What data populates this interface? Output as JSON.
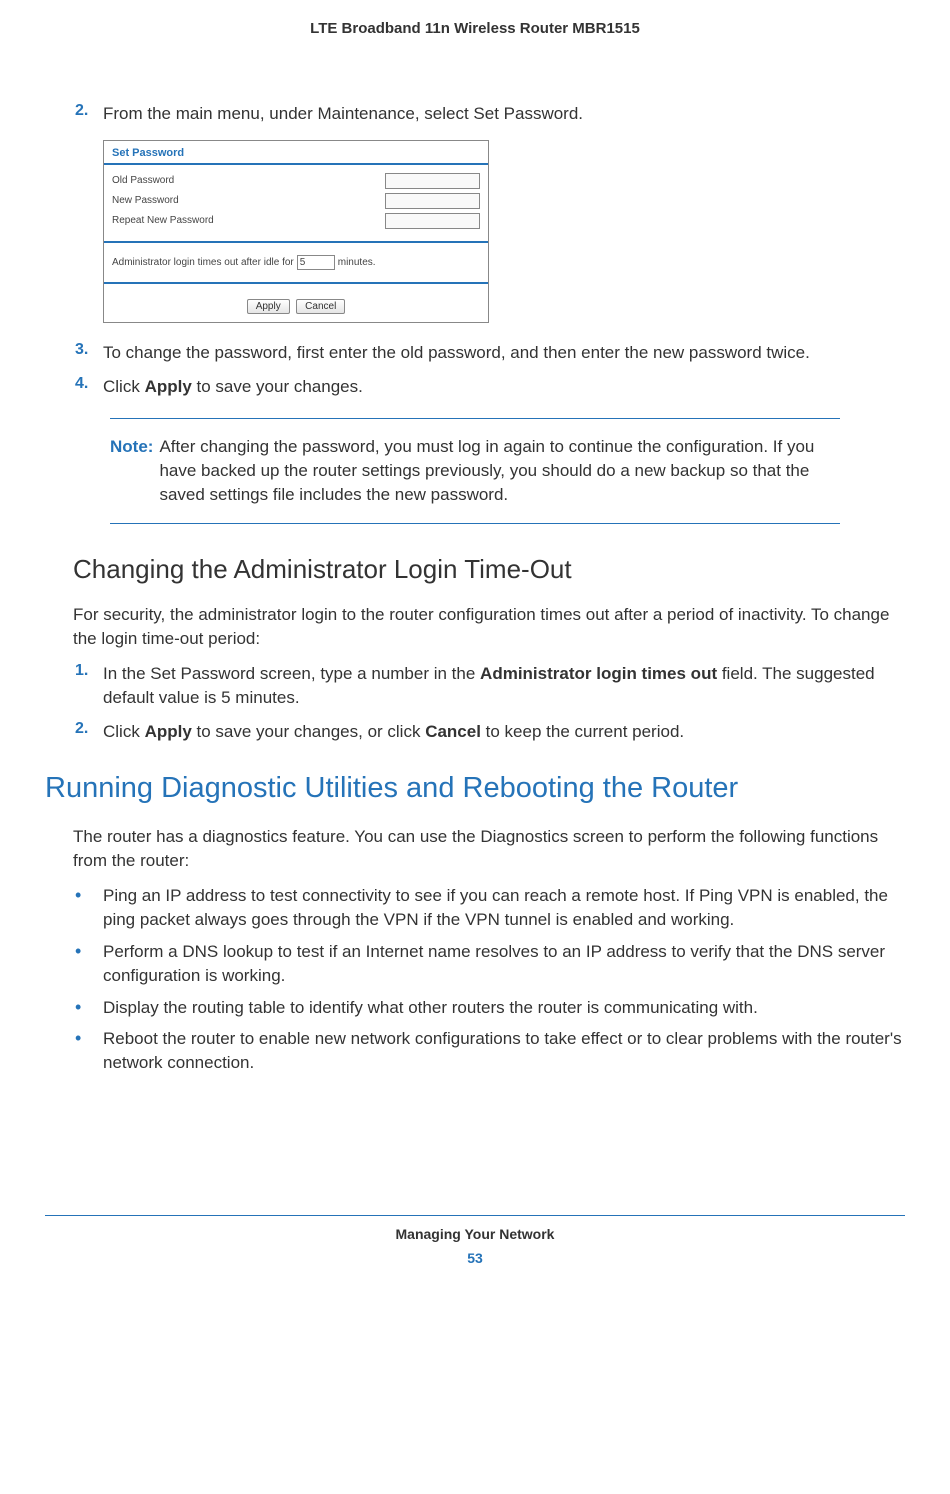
{
  "header": {
    "title": "LTE Broadband 11n Wireless Router MBR1515"
  },
  "step2": {
    "num": "2.",
    "text": "From the main menu, under Maintenance, select Set Password."
  },
  "screenshot": {
    "title": "Set Password",
    "rows": {
      "old": "Old Password",
      "new": "New Password",
      "repeat": "Repeat New Password"
    },
    "timeout_prefix": "Administrator login times out after idle for",
    "timeout_value": "5",
    "timeout_suffix": "minutes.",
    "apply": "Apply",
    "cancel": "Cancel"
  },
  "step3": {
    "num": "3.",
    "text": "To change the password, first enter the old password, and then enter the new password twice."
  },
  "step4": {
    "num": "4.",
    "prefix": "Click ",
    "bold": "Apply",
    "suffix": " to save your changes."
  },
  "note": {
    "label": "Note:",
    "text": "After changing the password, you must log in again to continue the configuration. If you have backed up the router settings previously, you should do a new backup so that the saved settings file includes the new password."
  },
  "section1": {
    "heading": "Changing the Administrator Login Time-Out",
    "intro": "For security, the administrator login to the router configuration times out after a period of inactivity. To change the login time-out period:"
  },
  "s1step1": {
    "num": "1.",
    "p1": "In the Set Password screen, type a number in the ",
    "bold": "Administrator login times out",
    "p2": " field. The suggested default value is 5 minutes."
  },
  "s1step2": {
    "num": "2.",
    "p1": "Click ",
    "b1": "Apply",
    "p2": " to save your changes, or click ",
    "b2": "Cancel",
    "p3": " to keep the current period."
  },
  "section2": {
    "heading": "Running Diagnostic Utilities and Rebooting the Router",
    "intro": "The router has a diagnostics feature. You can use the Diagnostics screen to perform the following functions from the router:"
  },
  "bullets": {
    "b1": "Ping an IP address to test connectivity to see if you can reach a remote host. If Ping VPN is enabled, the ping packet always goes through the VPN if the VPN tunnel is enabled and working.",
    "b2": "Perform a DNS lookup to test if an Internet name resolves to an IP address to verify that the DNS server configuration is working.",
    "b3": "Display the routing table to identify what other routers the router is communicating with.",
    "b4": "Reboot the router to enable new network configurations to take effect or to clear problems with the router's network connection."
  },
  "footer": {
    "chapter": "Managing Your Network",
    "page": "53"
  },
  "colors": {
    "accent": "#2573b8",
    "text": "#333333"
  }
}
